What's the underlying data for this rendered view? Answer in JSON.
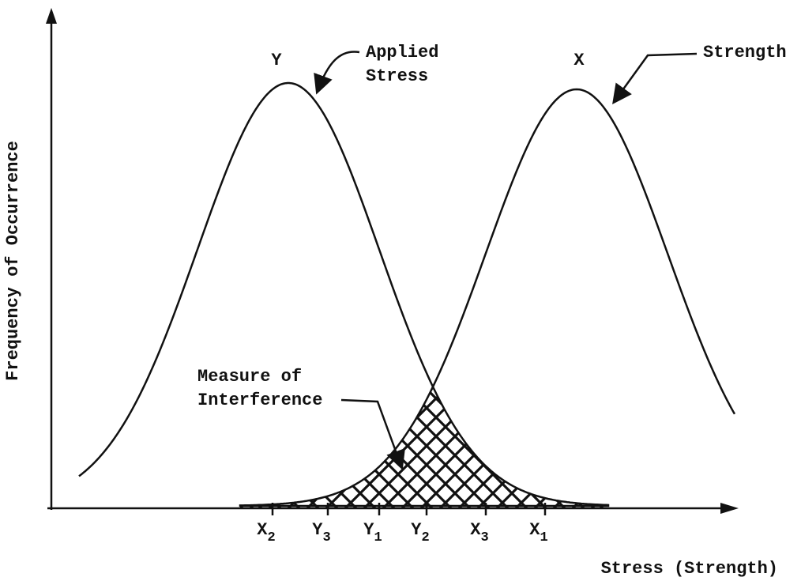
{
  "y_axis_label": "Frequency of Occurrence",
  "x_axis_label": "Stress (Strength)",
  "curves": [
    {
      "letter": "Y",
      "label": [
        "Applied",
        "Stress"
      ]
    },
    {
      "letter": "X",
      "label": [
        "Strength"
      ]
    }
  ],
  "interference_label": [
    "Measure of",
    "Interference"
  ],
  "ticks": [
    {
      "letter": "X",
      "sub": "2"
    },
    {
      "letter": "Y",
      "sub": "3"
    },
    {
      "letter": "Y",
      "sub": "1"
    },
    {
      "letter": "Y",
      "sub": "2"
    },
    {
      "letter": "X",
      "sub": "3"
    },
    {
      "letter": "X",
      "sub": "1"
    }
  ]
}
